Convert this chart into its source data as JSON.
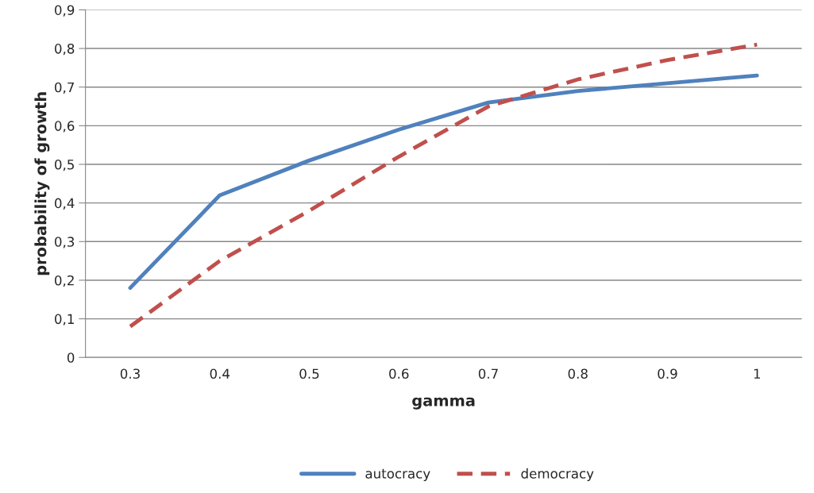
{
  "chart_data": {
    "type": "line",
    "xlabel": "gamma",
    "ylabel": "probability of growth",
    "categories": [
      "0.3",
      "0.4",
      "0.5",
      "0.6",
      "0.7",
      "0.8",
      "0.9",
      "1"
    ],
    "series": [
      {
        "name": "autocracy",
        "color": "#4f81bd",
        "line_style": "solid",
        "values": [
          0.18,
          0.42,
          0.51,
          0.59,
          0.66,
          0.69,
          0.71,
          0.73
        ]
      },
      {
        "name": "democracy",
        "color": "#c0504d",
        "line_style": "dashed",
        "values": [
          0.08,
          0.25,
          0.38,
          0.52,
          0.65,
          0.72,
          0.77,
          0.81
        ]
      }
    ],
    "ylim": [
      0,
      0.9
    ],
    "yticks": [
      {
        "value": 0,
        "label": "0"
      },
      {
        "value": 0.1,
        "label": "0,1"
      },
      {
        "value": 0.2,
        "label": "0,2"
      },
      {
        "value": 0.3,
        "label": "0,3"
      },
      {
        "value": 0.4,
        "label": "0,4"
      },
      {
        "value": 0.5,
        "label": "0,5"
      },
      {
        "value": 0.6,
        "label": "0,6"
      },
      {
        "value": 0.7,
        "label": "0,7"
      },
      {
        "value": 0.8,
        "label": "0,8"
      },
      {
        "value": 0.9,
        "label": "0,9"
      }
    ],
    "grid": "y",
    "legend": "bottom",
    "marker": "none"
  }
}
